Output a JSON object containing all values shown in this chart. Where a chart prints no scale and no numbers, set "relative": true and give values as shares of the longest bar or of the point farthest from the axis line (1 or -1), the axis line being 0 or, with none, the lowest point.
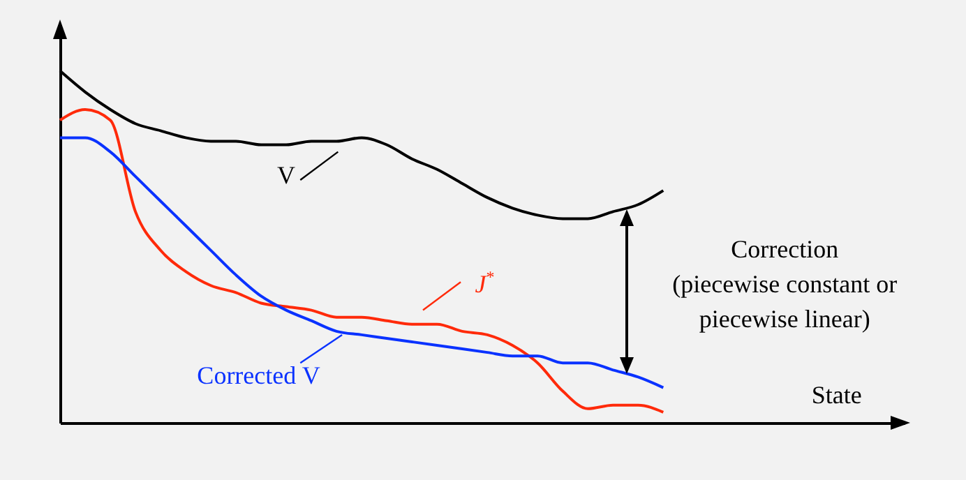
{
  "chart_data": {
    "type": "line",
    "relative": true,
    "categories": [
      null,
      null,
      null,
      null,
      null,
      null,
      null,
      null,
      null,
      null,
      null,
      null,
      null,
      null,
      null,
      null,
      null,
      null,
      null,
      null,
      null,
      null,
      null,
      null,
      null
    ],
    "series": [
      {
        "name": "V",
        "color": "#000000",
        "values": [
          1.0,
          0.94,
          0.89,
          0.85,
          0.83,
          0.81,
          0.8,
          0.8,
          0.79,
          0.79,
          0.8,
          0.8,
          0.81,
          0.79,
          0.75,
          0.72,
          0.68,
          0.64,
          0.61,
          0.59,
          0.58,
          0.58,
          0.6,
          0.62,
          0.66
        ]
      },
      {
        "name": "J$^{*}$",
        "color": "#ff2a0a",
        "values": [
          0.86,
          0.89,
          0.86,
          0.6,
          0.49,
          0.43,
          0.39,
          0.37,
          0.34,
          0.33,
          0.32,
          0.3,
          0.3,
          0.29,
          0.28,
          0.28,
          0.26,
          0.25,
          0.22,
          0.17,
          0.09,
          0.04,
          0.05,
          0.05,
          0.03
        ]
      },
      {
        "name": "Corrected V",
        "color": "#0a32ff",
        "values": [
          0.81,
          0.81,
          0.77,
          0.7,
          0.63,
          0.56,
          0.49,
          0.42,
          0.36,
          0.32,
          0.29,
          0.26,
          0.25,
          0.24,
          0.23,
          0.22,
          0.21,
          0.2,
          0.19,
          0.19,
          0.17,
          0.17,
          0.15,
          0.13,
          0.1
        ]
      }
    ],
    "annotations": [
      "Correction\n(piecewise constant or\npiecewise linear)",
      "State"
    ],
    "grid": false,
    "marker": "none",
    "line_style": "solid"
  }
}
